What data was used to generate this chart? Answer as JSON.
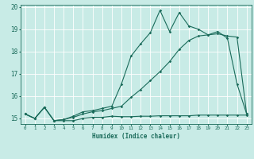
{
  "xlabel": "Humidex (Indice chaleur)",
  "ylabel": "",
  "background_color": "#c8ebe6",
  "line_color": "#1a6b5a",
  "grid_color": "#ffffff",
  "xlim": [
    -0.5,
    23.5
  ],
  "ylim": [
    14.75,
    20.1
  ],
  "yticks": [
    15,
    16,
    17,
    18,
    19,
    20
  ],
  "xticks": [
    0,
    1,
    2,
    3,
    4,
    5,
    6,
    7,
    8,
    9,
    10,
    11,
    12,
    13,
    14,
    15,
    16,
    17,
    18,
    19,
    20,
    21,
    22,
    23
  ],
  "series1_x": [
    0,
    1,
    2,
    3,
    4,
    5,
    6,
    7,
    8,
    9,
    10,
    11,
    12,
    13,
    14,
    15,
    16,
    17,
    18,
    19,
    20,
    21,
    22,
    23
  ],
  "series1_y": [
    15.2,
    15.0,
    15.5,
    14.9,
    14.9,
    14.9,
    15.0,
    15.05,
    15.05,
    15.1,
    15.08,
    15.08,
    15.1,
    15.1,
    15.12,
    15.12,
    15.12,
    15.12,
    15.15,
    15.15,
    15.15,
    15.15,
    15.15,
    15.15
  ],
  "series2_x": [
    0,
    1,
    2,
    3,
    4,
    5,
    6,
    7,
    8,
    9,
    10,
    11,
    12,
    13,
    14,
    15,
    16,
    17,
    18,
    19,
    20,
    21,
    22,
    23
  ],
  "series2_y": [
    15.2,
    15.0,
    15.5,
    14.9,
    14.95,
    15.05,
    15.2,
    15.3,
    15.35,
    15.45,
    15.55,
    15.95,
    16.3,
    16.7,
    17.1,
    17.55,
    18.1,
    18.5,
    18.7,
    18.75,
    18.8,
    18.7,
    18.65,
    15.2
  ],
  "series3_x": [
    0,
    1,
    2,
    3,
    4,
    5,
    6,
    7,
    8,
    9,
    10,
    11,
    12,
    13,
    14,
    15,
    16,
    17,
    18,
    19,
    20,
    21,
    22,
    23
  ],
  "series3_y": [
    15.2,
    15.0,
    15.5,
    14.9,
    14.95,
    15.1,
    15.3,
    15.35,
    15.45,
    15.55,
    16.55,
    17.8,
    18.35,
    18.85,
    19.85,
    18.9,
    19.75,
    19.15,
    19.0,
    18.75,
    18.9,
    18.6,
    16.55,
    15.2
  ]
}
